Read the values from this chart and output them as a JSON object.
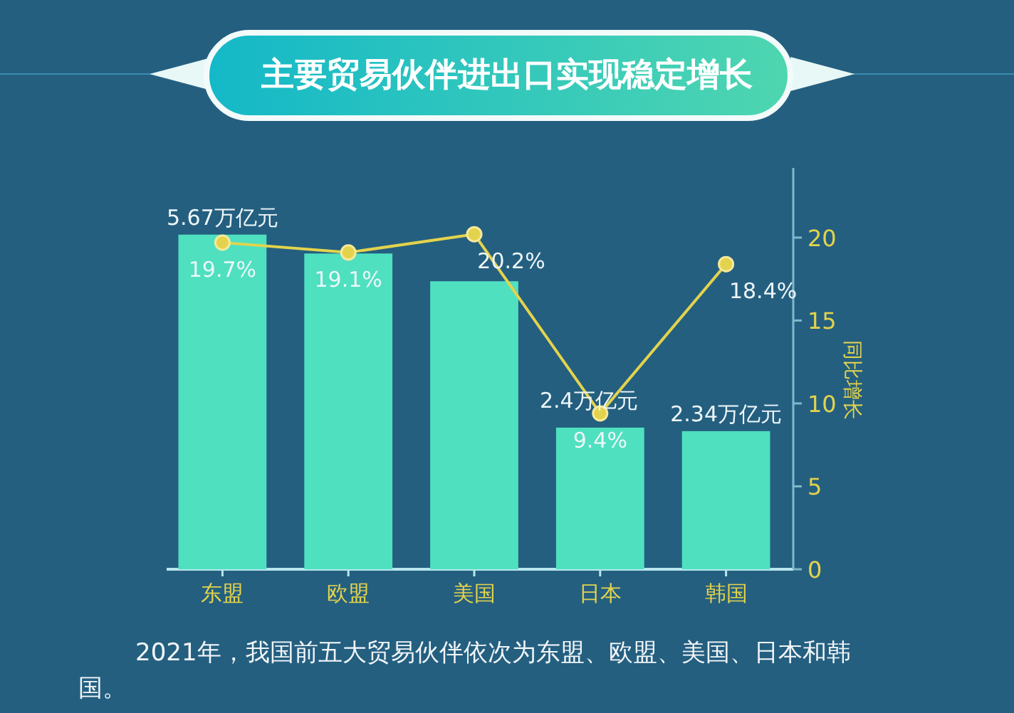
{
  "chart_data": {
    "type": "bar",
    "title": "主要贸易伙伴进出口实现稳定增长",
    "categories": [
      "东盟",
      "欧盟",
      "美国",
      "日本",
      "韩国"
    ],
    "series": [
      {
        "color": "#4fe0c0",
        "values": [
          5.67,
          5.35,
          4.88,
          2.4,
          2.34
        ],
        "value_labels": [
          "5.67万亿元",
          null,
          null,
          "2.4万亿元",
          "2.34万亿元"
        ]
      },
      {
        "type": "line",
        "axis": "y2",
        "color": "#e3d34c",
        "marker": "circle",
        "values": [
          19.7,
          19.1,
          20.2,
          9.4,
          18.4
        ],
        "value_labels": [
          "19.7%",
          "19.1%",
          "20.2%",
          "9.4%",
          "18.4%"
        ]
      }
    ],
    "ylim": [
      0,
      6.8
    ],
    "y2lim": [
      0,
      24.2
    ],
    "y2ticks": [
      0,
      5,
      10,
      15,
      20
    ],
    "y2label": "同比增长",
    "annotations": [
      "2021年，我国前五大贸易伙伴依次为东盟、欧盟、美国、日本和韩国。"
    ]
  }
}
